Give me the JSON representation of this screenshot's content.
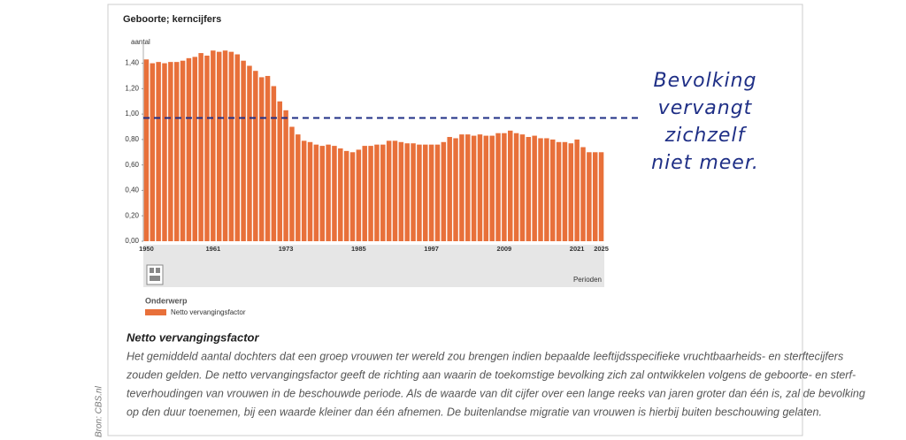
{
  "chart_data": {
    "type": "bar",
    "title": "Geboorte; kerncijfers",
    "y_label": "aantal",
    "x_label": "Perioden",
    "legend_title": "Onderwerp",
    "categories": [
      "1950",
      null,
      null,
      null,
      null,
      null,
      null,
      null,
      null,
      null,
      null,
      "1961",
      null,
      null,
      null,
      null,
      null,
      null,
      null,
      null,
      null,
      null,
      null,
      "1973",
      null,
      null,
      null,
      null,
      null,
      null,
      null,
      null,
      null,
      null,
      null,
      "1985",
      null,
      null,
      null,
      null,
      null,
      null,
      null,
      null,
      null,
      null,
      null,
      "1997",
      null,
      null,
      null,
      null,
      null,
      null,
      null,
      null,
      null,
      null,
      null,
      "2009",
      null,
      null,
      null,
      null,
      null,
      null,
      null,
      null,
      null,
      null,
      null,
      "2021",
      null,
      null,
      null,
      "2025"
    ],
    "series": [
      {
        "name": "Netto vervangingsfactor",
        "color": "#e8703a",
        "values": [
          1.43,
          1.4,
          1.41,
          1.4,
          1.41,
          1.41,
          1.42,
          1.44,
          1.45,
          1.48,
          1.46,
          1.5,
          1.49,
          1.5,
          1.49,
          1.47,
          1.42,
          1.38,
          1.34,
          1.29,
          1.3,
          1.22,
          1.1,
          1.03,
          0.9,
          0.84,
          0.79,
          0.78,
          0.76,
          0.75,
          0.76,
          0.75,
          0.73,
          0.71,
          0.7,
          0.72,
          0.75,
          0.75,
          0.76,
          0.76,
          0.79,
          0.79,
          0.78,
          0.77,
          0.77,
          0.76,
          0.76,
          0.76,
          0.76,
          0.78,
          0.82,
          0.81,
          0.84,
          0.84,
          0.83,
          0.84,
          0.83,
          0.83,
          0.85,
          0.85,
          0.87,
          0.85,
          0.84,
          0.82,
          0.83,
          0.81,
          0.81,
          0.8,
          0.78,
          0.78,
          0.77,
          0.8,
          0.74,
          0.7,
          0.7,
          0.7
        ]
      }
    ],
    "ylim": [
      0,
      1.55
    ],
    "yticks": [
      {
        "value": 0,
        "label": "0,00"
      },
      {
        "value": 0.2,
        "label": "0,20"
      },
      {
        "value": 0.4,
        "label": "0,40"
      },
      {
        "value": 0.6,
        "label": "0,60"
      },
      {
        "value": 0.8,
        "label": "0,80"
      },
      {
        "value": 1.0,
        "label": "1,00"
      },
      {
        "value": 1.2,
        "label": "1,20"
      },
      {
        "value": 1.4,
        "label": "1,40"
      }
    ],
    "reference_line": {
      "value": 0.97,
      "color": "#1f2f86"
    },
    "annotation": [
      "Bevolking",
      "vervangt",
      "zichzelf",
      "niet meer."
    ]
  },
  "description": {
    "title": "Netto vervangingsfactor",
    "lines": [
      "Het gemiddeld aantal dochters dat een groep vrouwen ter wereld zou brengen indien bepaalde leeftijdsspecifieke vruchtbaarheids- en sterftecijfers",
      "zouden gelden. De netto vervangingsfactor geeft de richting aan waarin de toekomstige bevolking zich zal ontwikkelen volgens de geboorte- en sterf-",
      "teverhoudingen van vrouwen in de beschouwde periode. Als de waarde van dit cijfer over een lange reeks van jaren groter dan één is, zal de bevolking",
      "op den duur toenemen, bij een waarde kleiner dan één afnemen. De buitenlandse migratie van vrouwen is hierbij buiten beschouwing gelaten."
    ]
  },
  "source": "Bron: CBS.nl"
}
